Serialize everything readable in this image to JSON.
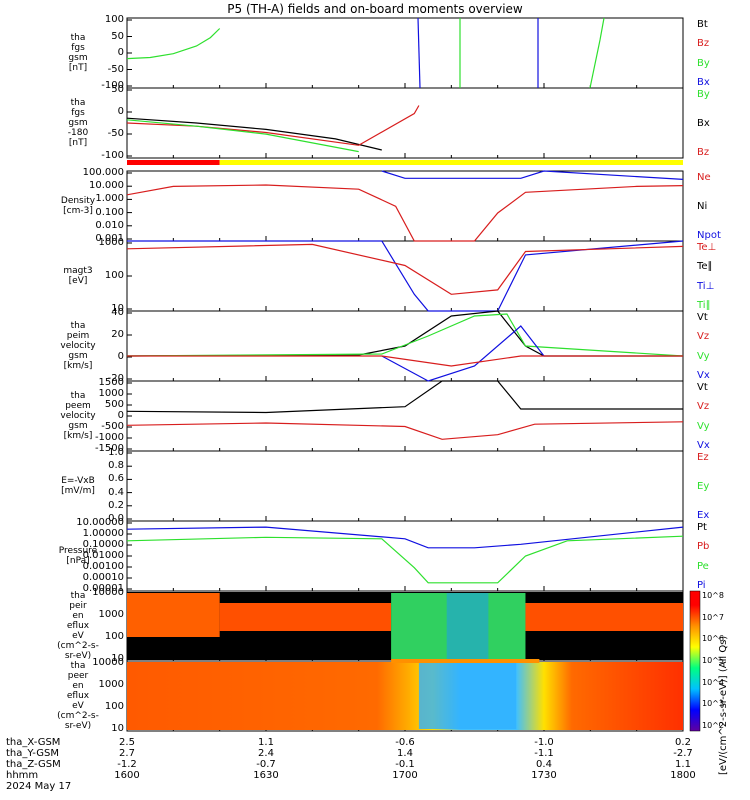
{
  "title": "P5 (TH-A) fields and on-board moments overview",
  "colors": {
    "black": "#000000",
    "red": "#d81e1e",
    "green": "#2ee02e",
    "blue": "#1010e0",
    "yellow": "#ffff00",
    "bar_red": "#ff0000"
  },
  "panels": [
    {
      "id": "fgs",
      "ylabel": [
        "tha",
        "fgs",
        "gsm",
        "[nT]"
      ],
      "yticks": [
        "100",
        "50",
        "0",
        "-50",
        "-100"
      ],
      "legend": [
        {
          "text": "Bt",
          "color": "#000000"
        },
        {
          "text": "Bz",
          "color": "#d81e1e"
        },
        {
          "text": "By",
          "color": "#2ee02e"
        },
        {
          "text": "Bx",
          "color": "#1010e0"
        }
      ]
    },
    {
      "id": "fgs_zoom",
      "ylabel": [
        "tha",
        "fgs",
        "gsm",
        "-180",
        "[nT]"
      ],
      "yticks": [
        "50",
        "0",
        "-50",
        "-100"
      ],
      "legend": [
        {
          "text": "By",
          "color": "#2ee02e"
        },
        {
          "text": "Bx",
          "color": "#000000"
        },
        {
          "text": "Bz",
          "color": "#d81e1e"
        }
      ]
    },
    {
      "id": "density",
      "ylabel": [
        "Density",
        "[cm-3]"
      ],
      "yticks": [
        "100.000",
        "10.000",
        "1.000",
        "0.100",
        "0.010",
        "0.001"
      ],
      "legend": [
        {
          "text": "Ne",
          "color": "#d81e1e"
        },
        {
          "text": "Ni",
          "color": "#000000"
        },
        {
          "text": "Npot",
          "color": "#1010e0"
        }
      ]
    },
    {
      "id": "temp",
      "ylabel": [
        "magt3",
        "[eV]"
      ],
      "yticks": [
        "1000",
        "100",
        "10"
      ],
      "legend": [
        {
          "text": "Te⊥",
          "color": "#d81e1e"
        },
        {
          "text": "Te∥",
          "color": "#000000"
        },
        {
          "text": "Ti⊥",
          "color": "#1010e0"
        },
        {
          "text": "Ti∥",
          "color": "#2ee02e"
        }
      ]
    },
    {
      "id": "peim_v",
      "ylabel": [
        "tha",
        "peim",
        "velocity",
        "gsm",
        "[km/s]"
      ],
      "yticks": [
        "40",
        "20",
        "0",
        "-20"
      ],
      "legend": [
        {
          "text": "Vt",
          "color": "#000000"
        },
        {
          "text": "Vz",
          "color": "#d81e1e"
        },
        {
          "text": "Vy",
          "color": "#2ee02e"
        },
        {
          "text": "Vx",
          "color": "#1010e0"
        }
      ]
    },
    {
      "id": "peem_v",
      "ylabel": [
        "tha",
        "peem",
        "velocity",
        "gsm",
        "[km/s]"
      ],
      "yticks": [
        "1500",
        "1000",
        "500",
        "0",
        "-500",
        "-1000",
        "-1500"
      ],
      "legend": [
        {
          "text": "Vt",
          "color": "#000000"
        },
        {
          "text": "Vz",
          "color": "#d81e1e"
        },
        {
          "text": "Vy",
          "color": "#2ee02e"
        },
        {
          "text": "Vx",
          "color": "#1010e0"
        }
      ]
    },
    {
      "id": "efield",
      "ylabel": [
        "E=-VxB",
        "[mV/m]"
      ],
      "yticks": [
        "1.0",
        "0.8",
        "0.6",
        "0.4",
        "0.2",
        "0.0"
      ],
      "legend": [
        {
          "text": "Ez",
          "color": "#d81e1e"
        },
        {
          "text": "Ey",
          "color": "#2ee02e"
        },
        {
          "text": "Ex",
          "color": "#1010e0"
        }
      ]
    },
    {
      "id": "pressure",
      "ylabel": [
        "Pressure",
        "[nPa]"
      ],
      "yticks": [
        "10.00000",
        "1.00000",
        "0.10000",
        "0.01000",
        "0.00100",
        "0.00010",
        "0.00001"
      ],
      "legend": [
        {
          "text": "Pt",
          "color": "#000000"
        },
        {
          "text": "Pb",
          "color": "#d81e1e"
        },
        {
          "text": "Pe",
          "color": "#2ee02e"
        },
        {
          "text": "Pi",
          "color": "#1010e0"
        }
      ]
    },
    {
      "id": "peir_spec",
      "ylabel": [
        "tha",
        "peir",
        "en",
        "eflux",
        "eV",
        "(cm^2-s-",
        "sr-eV)"
      ],
      "yticks": [
        "10000",
        "1000",
        "100",
        "10"
      ],
      "legend": []
    },
    {
      "id": "peer_spec",
      "ylabel": [
        "tha",
        "peer",
        "en",
        "eflux",
        "eV",
        "(cm^2-s-",
        "sr-eV)"
      ],
      "yticks": [
        "10000",
        "1000",
        "100",
        "10"
      ],
      "legend": []
    }
  ],
  "colorbar": {
    "ticks": [
      "10^8",
      "10^7",
      "10^6",
      "10^5",
      "10^4",
      "10^3",
      "10^2"
    ],
    "label": "[eV/(cm^2-s-sr-eV)] (All Qs)"
  },
  "footer": {
    "rows": [
      {
        "label": "tha_X-GSM",
        "values": [
          "2.5",
          "1.1",
          "-0.6",
          "-1.0",
          "0.2"
        ]
      },
      {
        "label": "tha_Y-GSM",
        "values": [
          "2.7",
          "2.4",
          "1.4",
          "-1.1",
          "-2.7"
        ]
      },
      {
        "label": "tha_Z-GSM",
        "values": [
          "-1.2",
          "-0.7",
          "-0.1",
          "0.4",
          "1.1"
        ]
      },
      {
        "label": "hhmm",
        "values": [
          "1600",
          "1630",
          "1700",
          "1730",
          "1800"
        ]
      }
    ],
    "date": "2024 May 17"
  },
  "chart_data": {
    "type": "line",
    "title": "P5 (TH-A) fields and on-board moments overview",
    "x_ticks": [
      "1600",
      "1630",
      "1700",
      "1730",
      "1800"
    ],
    "x_range": [
      "16:00",
      "18:00"
    ],
    "mode_bar": [
      {
        "from": "16:00",
        "to": "16:20",
        "state": "slow survey (red)"
      },
      {
        "from": "16:20",
        "to": "18:00",
        "state": "fast survey (yellow)"
      }
    ],
    "panels": [
      {
        "id": "fgs",
        "ylim": [
          -100,
          100
        ],
        "series": [
          {
            "name": "By",
            "values": [
              [
                0,
                -16
              ],
              [
                5,
                -13
              ],
              [
                10,
                -2
              ],
              [
                15,
                20
              ],
              [
                18,
                44
              ],
              [
                20,
                70
              ]
            ]
          }
        ]
      },
      {
        "id": "fgs_zoom",
        "ylim": [
          -120,
          100
        ],
        "series": [
          {
            "name": "Bx",
            "values": [
              [
                0,
                5
              ],
              [
                15,
                -10
              ],
              [
                30,
                -30
              ],
              [
                45,
                -60
              ],
              [
                55,
                -95
              ]
            ]
          },
          {
            "name": "Bz",
            "values": [
              [
                0,
                -10
              ],
              [
                15,
                -20
              ],
              [
                30,
                -40
              ],
              [
                50,
                -80
              ],
              [
                62,
                20
              ],
              [
                63,
                45
              ]
            ]
          },
          {
            "name": "By",
            "values": [
              [
                0,
                0
              ],
              [
                15,
                -20
              ],
              [
                30,
                -45
              ],
              [
                50,
                -100
              ]
            ]
          }
        ]
      },
      {
        "id": "density",
        "scale": "log",
        "ylim": [
          0.001,
          100
        ],
        "series": [
          {
            "name": "Ne",
            "values": [
              [
                0,
                2
              ],
              [
                10,
                8
              ],
              [
                30,
                10
              ],
              [
                50,
                5
              ],
              [
                58,
                0.3
              ],
              [
                62,
                0.001
              ],
              [
                75,
                0.001
              ],
              [
                80,
                0.1
              ],
              [
                86,
                3
              ],
              [
                110,
                8
              ],
              [
                120,
                9
              ]
            ]
          },
          {
            "name": "Npot",
            "values": [
              [
                55,
                100
              ],
              [
                60,
                30
              ],
              [
                85,
                30
              ],
              [
                90,
                100
              ],
              [
                120,
                25
              ]
            ]
          }
        ]
      },
      {
        "id": "temp",
        "scale": "log",
        "ylim": [
          10,
          1000
        ],
        "series": [
          {
            "name": "Ti⊥",
            "values": [
              [
                0,
                1000
              ],
              [
                55,
                1200
              ],
              [
                62,
                30
              ],
              [
                65,
                10
              ],
              [
                80,
                10
              ],
              [
                86,
                400
              ],
              [
                120,
                1000
              ]
            ]
          },
          {
            "name": "Te⊥",
            "values": [
              [
                0,
                600
              ],
              [
                40,
                800
              ],
              [
                60,
                200
              ],
              [
                70,
                30
              ],
              [
                80,
                40
              ],
              [
                86,
                500
              ],
              [
                120,
                700
              ]
            ]
          }
        ]
      },
      {
        "id": "peim_v",
        "ylim": [
          -25,
          45
        ],
        "series": [
          {
            "name": "Vt",
            "values": [
              [
                0,
                0
              ],
              [
                50,
                1
              ],
              [
                60,
                10
              ],
              [
                70,
                40
              ],
              [
                80,
                45
              ],
              [
                86,
                10
              ],
              [
                90,
                0
              ],
              [
                120,
                0
              ]
            ]
          },
          {
            "name": "Vy",
            "values": [
              [
                0,
                0
              ],
              [
                55,
                2
              ],
              [
                65,
                20
              ],
              [
                75,
                40
              ],
              [
                82,
                42
              ],
              [
                86,
                10
              ],
              [
                120,
                0
              ]
            ]
          },
          {
            "name": "Vx",
            "values": [
              [
                55,
                0
              ],
              [
                65,
                -25
              ],
              [
                75,
                -10
              ],
              [
                85,
                30
              ],
              [
                90,
                0
              ]
            ]
          },
          {
            "name": "Vz",
            "values": [
              [
                0,
                0
              ],
              [
                55,
                0
              ],
              [
                70,
                -10
              ],
              [
                85,
                0
              ],
              [
                120,
                0
              ]
            ]
          }
        ]
      },
      {
        "id": "peem_v",
        "ylim": [
          -1500,
          1500
        ],
        "series": [
          {
            "name": "Vt",
            "values": [
              [
                0,
                200
              ],
              [
                30,
                150
              ],
              [
                60,
                400
              ],
              [
                68,
                1500
              ],
              [
                80,
                1500
              ],
              [
                85,
                300
              ],
              [
                120,
                300
              ]
            ]
          },
          {
            "name": "Vz",
            "values": [
              [
                0,
                -400
              ],
              [
                30,
                -300
              ],
              [
                60,
                -450
              ],
              [
                68,
                -1000
              ],
              [
                80,
                -800
              ],
              [
                88,
                -350
              ],
              [
                120,
                -250
              ]
            ]
          }
        ]
      },
      {
        "id": "pressure",
        "scale": "log",
        "ylim": [
          1e-05,
          10
        ],
        "series": [
          {
            "name": "Pt",
            "values": [
              [
                0,
                2
              ],
              [
                30,
                3
              ],
              [
                60,
                0.3
              ],
              [
                65,
                0.05
              ],
              [
                75,
                0.05
              ],
              [
                85,
                0.1
              ],
              [
                120,
                3
              ]
            ]
          },
          {
            "name": "Pe",
            "values": [
              [
                0,
                0.2
              ],
              [
                30,
                0.4
              ],
              [
                55,
                0.3
              ],
              [
                62,
                0.001
              ],
              [
                65,
                5e-05
              ],
              [
                80,
                5e-05
              ],
              [
                86,
                0.01
              ],
              [
                95,
                0.2
              ],
              [
                120,
                0.5
              ]
            ]
          }
        ]
      }
    ]
  }
}
